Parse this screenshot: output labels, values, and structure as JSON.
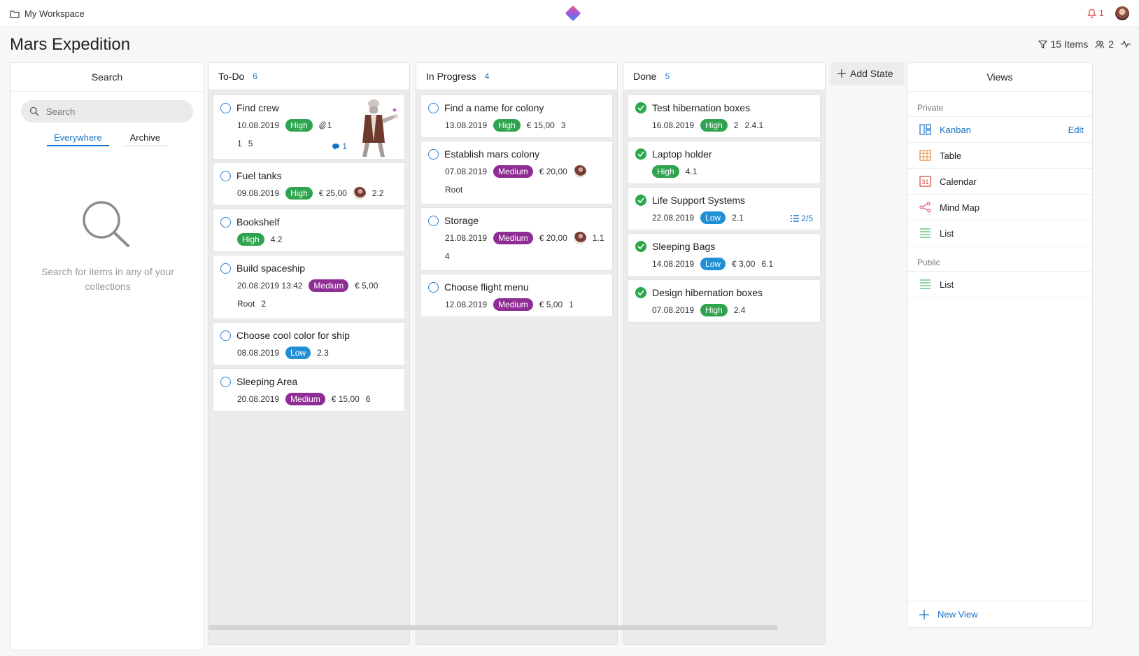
{
  "header": {
    "workspace": "My Workspace",
    "notifications": "1"
  },
  "page": {
    "title": "Mars Expedition",
    "items_count": "15 Items",
    "members_count": "2"
  },
  "search": {
    "heading": "Search",
    "placeholder": "Search",
    "tabs": [
      "Everywhere",
      "Archive"
    ],
    "empty_text": "Search for items in any of your collections"
  },
  "columns": [
    {
      "name": "To-Do",
      "count": "6",
      "cards": [
        {
          "title": "Find crew",
          "date": "10.08.2019",
          "priority": "High",
          "attachments": "1",
          "extra1": "1",
          "extra2": "5",
          "comments": "1"
        },
        {
          "title": "Fuel tanks",
          "date": "09.08.2019",
          "priority": "High",
          "price": "€ 25,00",
          "num": "2.2"
        },
        {
          "title": "Bookshelf",
          "priority": "High",
          "num": "4.2"
        },
        {
          "title": "Build spaceship",
          "date": "20.08.2019 13:42",
          "priority": "Medium",
          "price": "€ 5,00",
          "parent": "Root",
          "num": "2"
        },
        {
          "title": "Choose cool color for ship",
          "date": "08.08.2019",
          "priority": "Low",
          "num": "2.3"
        },
        {
          "title": "Sleeping Area",
          "date": "20.08.2019",
          "priority": "Medium",
          "price": "€ 15,00",
          "num": "6"
        }
      ]
    },
    {
      "name": "In Progress",
      "count": "4",
      "cards": [
        {
          "title": "Find a name for colony",
          "date": "13.08.2019",
          "priority": "High",
          "price": "€ 15,00",
          "num": "3"
        },
        {
          "title": "Establish mars colony",
          "date": "07.08.2019",
          "priority": "Medium",
          "price": "€ 20,00",
          "parent": "Root"
        },
        {
          "title": "Storage",
          "date": "21.08.2019",
          "priority": "Medium",
          "price": "€ 20,00",
          "num": "1.1",
          "extra": "4"
        },
        {
          "title": "Choose flight menu",
          "date": "12.08.2019",
          "priority": "Medium",
          "price": "€ 5,00",
          "num": "1"
        }
      ]
    },
    {
      "name": "Done",
      "count": "5",
      "cards": [
        {
          "title": "Test hibernation boxes",
          "date": "16.08.2019",
          "priority": "High",
          "num1": "2",
          "num2": "2.4.1"
        },
        {
          "title": "Laptop holder",
          "priority": "High",
          "num": "4.1"
        },
        {
          "title": "Life Support Systems",
          "date": "22.08.2019",
          "priority": "Low",
          "num": "2.1",
          "checklist": "2/5"
        },
        {
          "title": "Sleeping Bags",
          "date": "14.08.2019",
          "priority": "Low",
          "price": "€ 3,00",
          "num": "6.1"
        },
        {
          "title": "Design hibernation boxes",
          "date": "07.08.2019",
          "priority": "High",
          "num": "2.4"
        }
      ]
    }
  ],
  "add_state": "Add State",
  "views": {
    "heading": "Views",
    "private_label": "Private",
    "public_label": "Public",
    "edit_label": "Edit",
    "private_items": [
      "Kanban",
      "Table",
      "Calendar",
      "Mind Map",
      "List"
    ],
    "public_items": [
      "List"
    ],
    "new_view": "New View"
  },
  "colors": {
    "accent": "#1a73c8",
    "high": "#2ea44f",
    "low": "#1f8fd6",
    "medium": "#8e2d94",
    "done_check": "#2aa84a"
  }
}
